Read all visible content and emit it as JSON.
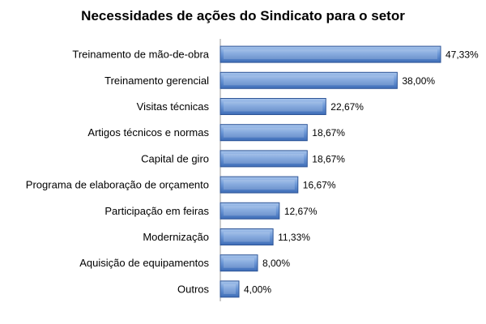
{
  "chart_data": {
    "type": "bar",
    "orientation": "horizontal",
    "title": "Necessidades de ações do Sindicato para o setor",
    "xlabel": "",
    "ylabel": "",
    "xlim": [
      0,
      50
    ],
    "grid": false,
    "legend": "none",
    "categories": [
      "Treinamento de mão-de-obra",
      "Treinamento gerencial",
      "Visitas técnicas",
      "Artigos técnicos e normas",
      "Capital de giro",
      "Programa de elaboração de orçamento",
      "Participação em feiras",
      "Modernização",
      "Aquisição de equipamentos",
      "Outros"
    ],
    "values": [
      47.33,
      38.0,
      22.67,
      18.67,
      18.67,
      16.67,
      12.67,
      11.33,
      8.0,
      4.0
    ],
    "data_labels": [
      "47,33%",
      "38,00%",
      "22,67%",
      "18,67%",
      "18,67%",
      "16,67%",
      "12,67%",
      "11,33%",
      "8,00%",
      "4,00%"
    ],
    "colors": {
      "bar_light": "#a9c6ec",
      "bar_mid": "#6f9ad8",
      "bar_dark": "#3e6db7",
      "bar_edge": "#2e5597"
    }
  }
}
